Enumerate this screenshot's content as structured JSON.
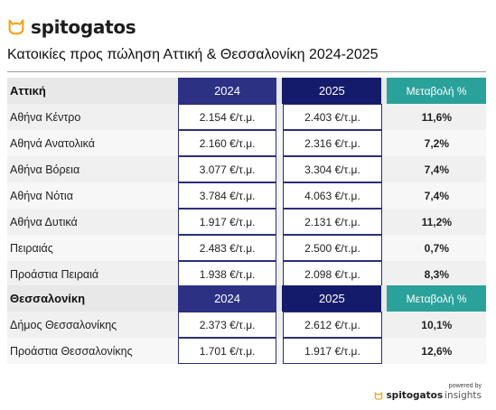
{
  "brand": {
    "logo_text": "spitogatos",
    "accent": "#f4a31a"
  },
  "title": "Κατοικίες προς πώληση Αττική & Θεσσαλονίκη 2024-2025",
  "sections": [
    {
      "header": {
        "region": "Αττική",
        "year1": "2024",
        "year2": "2025",
        "change": "Μεταβολή %"
      },
      "rows": [
        {
          "area": "Αθήνα Κέντρο",
          "v2024": "2.154 €/τ.μ.",
          "v2025": "2.403 €/τ.μ.",
          "change": "11,6%"
        },
        {
          "area": "Αθηνά Ανατολικά",
          "v2024": "2.160 €/τ.μ.",
          "v2025": "2.316 €/τ.μ.",
          "change": "7,2%"
        },
        {
          "area": "Αθήνα Βόρεια",
          "v2024": "3.077 €/τ.μ.",
          "v2025": "3.304 €/τ.μ.",
          "change": "7,4%"
        },
        {
          "area": "Αθήνα Νότια",
          "v2024": "3.784 €/τ.μ.",
          "v2025": "4.063 €/τ.μ.",
          "change": "7,4%"
        },
        {
          "area": "Αθήνα Δυτικά",
          "v2024": "1.917 €/τ.μ.",
          "v2025": "2.131 €/τ.μ.",
          "change": "11,2%"
        },
        {
          "area": "Πειραιάς",
          "v2024": "2.483 €/τ.μ.",
          "v2025": "2.500 €/τ.μ.",
          "change": "0,7%"
        },
        {
          "area": "Προάστια Πειραιά",
          "v2024": "1.938 €/τ.μ.",
          "v2025": "2.098 €/τ.μ.",
          "change": "8,3%"
        }
      ]
    },
    {
      "header": {
        "region": "Θεσσαλονίκη",
        "year1": "2024",
        "year2": "2025",
        "change": "Μεταβολή %"
      },
      "rows": [
        {
          "area": "Δήμος Θεσσαλονίκης",
          "v2024": "2.373 €/τ.μ.",
          "v2025": "2.612 €/τ.μ.",
          "change": "10,1%"
        },
        {
          "area": "Προάστια Θεσσαλονίκης",
          "v2024": "1.701 €/τ.μ.",
          "v2025": "1.917 €/τ.μ.",
          "change": "12,6%"
        }
      ]
    }
  ],
  "footer": {
    "powered_by": "powered by",
    "brand": "spitogatos",
    "suffix": "insights"
  },
  "colors": {
    "year1_header": "#2d3184",
    "year2_header": "#141b6b",
    "change_header": "#2aa19a"
  }
}
